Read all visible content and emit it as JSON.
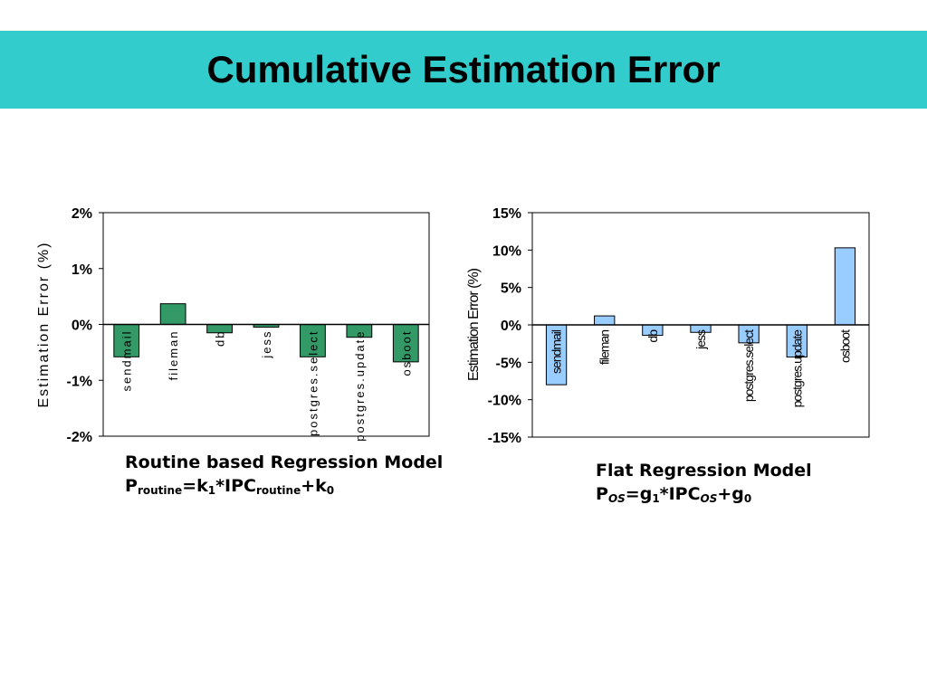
{
  "slide": {
    "title": "Cumulative Estimation Error"
  },
  "chart_data": [
    {
      "type": "bar",
      "title": "",
      "xlabel": "",
      "ylabel": "Estimation Error (%)",
      "ylim": [
        -2,
        2
      ],
      "yticks": [
        "2%",
        "1%",
        "0%",
        "-1%",
        "-2%"
      ],
      "ytick_values": [
        2,
        1,
        0,
        -1,
        -2
      ],
      "grid": false,
      "legend": "none",
      "bar_color": "#339966",
      "categories": [
        "sendmail",
        "fileman",
        "db",
        "jess",
        "postgres.select",
        "postgres.update",
        "osboot"
      ],
      "values": [
        -0.58,
        0.37,
        -0.15,
        -0.05,
        -0.58,
        -0.23,
        -0.67
      ]
    },
    {
      "type": "bar",
      "title": "",
      "xlabel": "",
      "ylabel": "Estimation Error (%)",
      "ylim": [
        -15,
        15
      ],
      "yticks": [
        "15%",
        "10%",
        "5%",
        "0%",
        "-5%",
        "-10%",
        "-15%"
      ],
      "ytick_values": [
        15,
        10,
        5,
        0,
        -5,
        -10,
        -15
      ],
      "grid": false,
      "legend": "none",
      "bar_color": "#99ccff",
      "categories": [
        "sendmail",
        "fileman",
        "db",
        "jess",
        "postgres.select",
        "postgres.update",
        "osboot"
      ],
      "values": [
        -8.0,
        1.2,
        -1.4,
        -1.0,
        -2.4,
        -4.3,
        10.3
      ]
    }
  ],
  "captions": {
    "left": {
      "line1": "Routine based Regression Model",
      "p": "P",
      "p_sub": "routine",
      "eq1": "=k",
      "k1_sub": "1",
      "eq2": "*IPC",
      "ipc_sub": "routine",
      "eq3": "+k",
      "k0_sub": "0"
    },
    "right": {
      "line1": "Flat Regression Model",
      "p": "P",
      "p_sub": "OS",
      "eq1": "=g",
      "g1_sub": "1",
      "eq2": "*IPC",
      "ipc_sub": "OS",
      "eq3": "+g",
      "g0_sub": "0"
    }
  }
}
